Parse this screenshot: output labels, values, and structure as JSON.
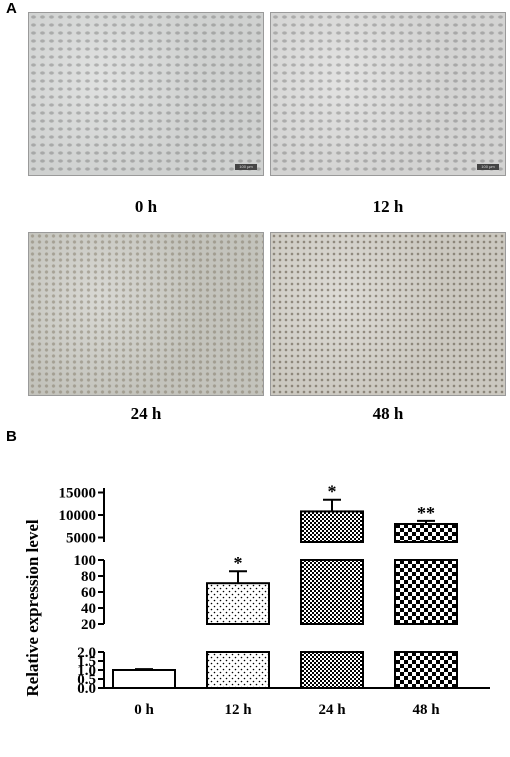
{
  "panel_a": {
    "letter": "A",
    "images": [
      {
        "label": "0 h",
        "scale_bar": "100 μm",
        "tone": "#cfd1d0"
      },
      {
        "label": "12 h",
        "scale_bar": "100 μm",
        "tone": "#d3d3d2"
      },
      {
        "label": "24 h",
        "scale_bar": "",
        "tone": "#c3c3bc"
      },
      {
        "label": "48 h",
        "scale_bar": "",
        "tone": "#cbc8c0"
      }
    ]
  },
  "panel_b": {
    "letter": "B"
  },
  "chart_data": {
    "type": "bar",
    "ylabel": "Relative expression level",
    "xlabel": "",
    "categories": [
      "0 h",
      "12 h",
      "24 h",
      "48 h"
    ],
    "values": [
      1.0,
      71,
      10800,
      8000
    ],
    "errors": [
      0.05,
      15,
      2600,
      700
    ],
    "significance": [
      "",
      "*",
      "*",
      "**"
    ],
    "patterns": [
      "plain",
      "dots",
      "fine-check",
      "coarse-check"
    ],
    "y_segments": [
      {
        "range": [
          0.0,
          2.0
        ],
        "ticks": [
          "0.0",
          "0.5",
          "1.0",
          "1.5",
          "2.0"
        ],
        "tick_values": [
          0,
          0.5,
          1,
          1.5,
          2
        ]
      },
      {
        "range": [
          20,
          100
        ],
        "ticks": [
          "20",
          "40",
          "60",
          "80",
          "100"
        ],
        "tick_values": [
          20,
          40,
          60,
          80,
          100
        ]
      },
      {
        "range": [
          4000,
          16000
        ],
        "ticks": [
          "5000",
          "10000",
          "15000"
        ],
        "tick_values": [
          5000,
          10000,
          15000
        ]
      }
    ],
    "grid": false
  }
}
